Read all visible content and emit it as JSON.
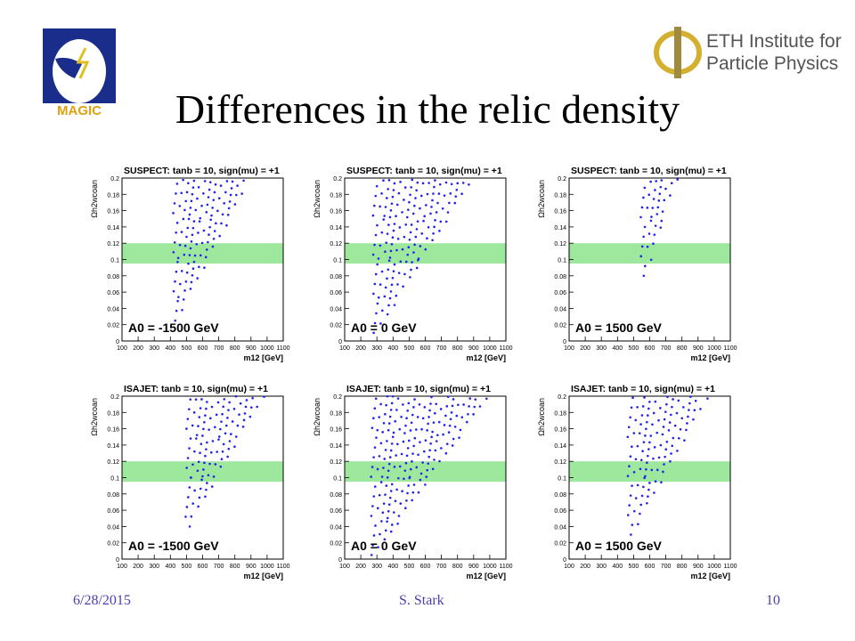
{
  "slide": {
    "title": "Differences in the relic density",
    "footer": {
      "date": "6/28/2015",
      "author": "S. Stark",
      "page": "10"
    },
    "logos": {
      "left": {
        "text": "MAGIC",
        "icon": "magic-telescope-logo"
      },
      "right": {
        "lines": [
          "ETH Institute for",
          "Particle Physics"
        ],
        "icon": "phi-logo"
      }
    },
    "colors": {
      "points": "#2222ee",
      "band": "#7ee07e",
      "footer": "#4a3fb0"
    }
  },
  "chart_data": [
    {
      "type": "scatter",
      "title": "SUSPECT: tanb = 10, sign(mu) = +1",
      "label": "A0 = -1500 GeV",
      "xlabel": "m12 [GeV]",
      "ylabel": "Ωh2wcoan",
      "xlim": [
        100,
        1100
      ],
      "ylim": [
        0,
        0.2
      ],
      "band": [
        0.095,
        0.12
      ],
      "region": {
        "xmin": 430,
        "xmax": 840,
        "ybottom": 0.025,
        "slope": 0.00038
      }
    },
    {
      "type": "scatter",
      "title": "SUSPECT: tanb = 10, sign(mu) = +1",
      "label": "A0 = 0 GeV",
      "xlabel": "m12 [GeV]",
      "ylabel": "Ωh2wcoan",
      "xlim": [
        100,
        1100
      ],
      "ylim": [
        0,
        0.2
      ],
      "band": [
        0.095,
        0.12
      ],
      "region": {
        "xmin": 290,
        "xmax": 930,
        "ybottom": 0.01,
        "slope": 0.00032
      }
    },
    {
      "type": "scatter",
      "title": "SUSPECT: tanb = 10, sign(mu) = +1",
      "label": "A0 = 1500 GeV",
      "xlabel": "m12 [GeV]",
      "ylabel": "Ωh2wcoan",
      "xlim": [
        100,
        1100
      ],
      "ylim": [
        0,
        0.2
      ],
      "band": [
        0.095,
        0.12
      ],
      "region": {
        "xmin": 560,
        "xmax": 790,
        "ybottom": 0.08,
        "slope": 0.0006
      }
    },
    {
      "type": "scatter",
      "title": "ISAJET: tanb = 10, sign(mu) = +1",
      "label": "A0 = -1500 GeV",
      "xlabel": "m12 [GeV]",
      "ylabel": "Ωh2wcoan",
      "xlim": [
        100,
        1100
      ],
      "ylim": [
        0,
        0.2
      ],
      "band": [
        0.095,
        0.12
      ],
      "region": {
        "xmin": 510,
        "xmax": 1000,
        "ybottom": 0.04,
        "slope": 0.00035
      }
    },
    {
      "type": "scatter",
      "title": "ISAJET: tanb = 10, sign(mu) = +1",
      "label": "A0 = 0 GeV",
      "xlabel": "m12 [GeV]",
      "ylabel": "Ωh2wcoan",
      "xlim": [
        100,
        1100
      ],
      "ylim": [
        0,
        0.2
      ],
      "band": [
        0.095,
        0.12
      ],
      "region": {
        "xmin": 280,
        "xmax": 1000,
        "ybottom": 0.005,
        "slope": 0.00028
      }
    },
    {
      "type": "scatter",
      "title": "ISAJET: tanb = 10, sign(mu) = +1",
      "label": "A0 = 1500 GeV",
      "xlabel": "m12 [GeV]",
      "ylabel": "Ωh2wcoan",
      "xlim": [
        100,
        1100
      ],
      "ylim": [
        0,
        0.2
      ],
      "band": [
        0.095,
        0.12
      ],
      "region": {
        "xmin": 480,
        "xmax": 980,
        "ybottom": 0.03,
        "slope": 0.00036
      }
    }
  ]
}
